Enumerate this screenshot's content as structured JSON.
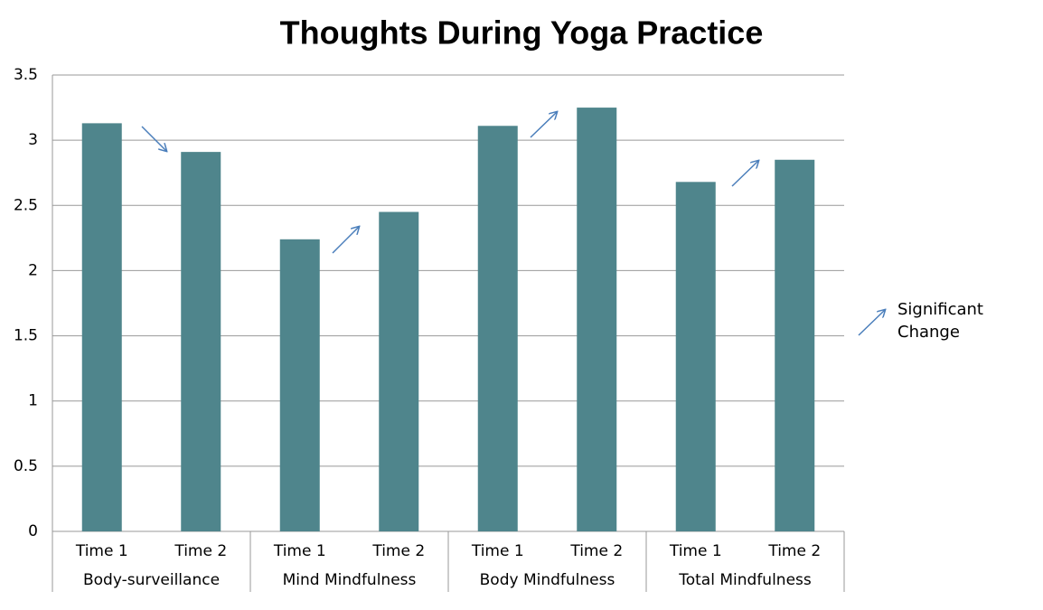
{
  "chart_data": {
    "type": "bar",
    "title": "Thoughts During Yoga Practice",
    "categories": [
      "Time 1",
      "Time 2",
      "Time 1",
      "Time 2",
      "Time 1",
      "Time 2",
      "Time 1",
      "Time 2"
    ],
    "groups": [
      "Body-surveillance",
      "Mind Mindfulness",
      "Body Mindfulness",
      "Total Mindfulness"
    ],
    "values": [
      3.13,
      2.91,
      2.24,
      2.45,
      3.11,
      3.25,
      2.68,
      2.85
    ],
    "color": "#4f858c",
    "ylim": [
      0,
      3.5
    ],
    "yticks": [
      0,
      0.5,
      1,
      1.5,
      2,
      2.5,
      3,
      3.5
    ],
    "grid": true,
    "annotation": "Significant Change"
  }
}
